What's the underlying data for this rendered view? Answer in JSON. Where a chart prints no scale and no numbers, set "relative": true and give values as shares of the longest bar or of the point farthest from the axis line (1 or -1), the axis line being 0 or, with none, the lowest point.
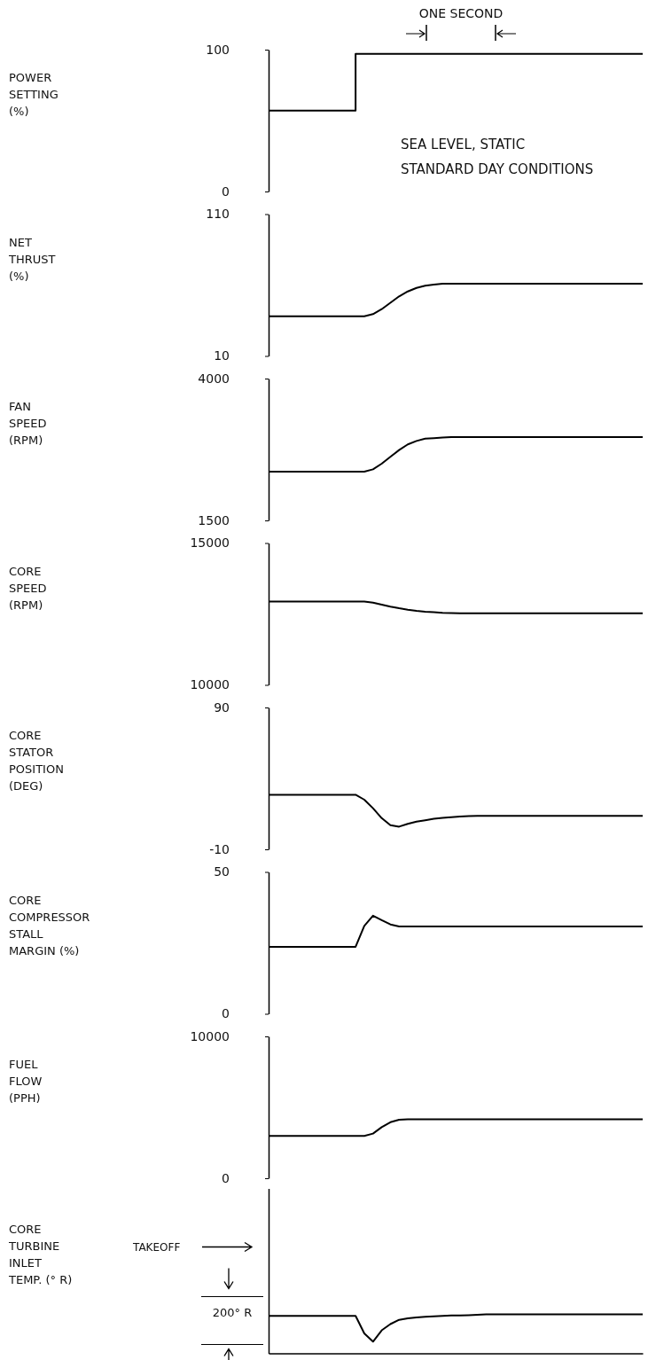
{
  "chart_data": [
    {
      "type": "step",
      "ylabel": "POWER\nSETTING\n(%)",
      "categories": [
        null,
        null,
        null,
        null,
        null,
        null,
        null,
        null,
        null,
        null,
        null,
        null,
        null,
        null,
        null,
        null,
        null,
        null,
        null,
        null,
        null,
        null,
        null,
        null,
        null,
        null,
        null,
        null,
        null,
        null,
        null,
        null,
        null,
        null,
        null,
        null,
        null,
        null,
        null,
        null,
        null,
        null,
        null,
        null
      ],
      "color": "#000000",
      "values": [
        57,
        57,
        57,
        57,
        57,
        57,
        57,
        57,
        57,
        57,
        97,
        97,
        97,
        97,
        97,
        97,
        97,
        97,
        97,
        97,
        97,
        97,
        97,
        97,
        97,
        97,
        97,
        97,
        97,
        97,
        97,
        97,
        97,
        97,
        97,
        97,
        97,
        97,
        97,
        97,
        97,
        97,
        97,
        97
      ],
      "ylim": [
        0,
        100
      ],
      "yticks": [
        0,
        100
      ],
      "tick_labels": "y",
      "annotations": [
        "ONE SECOND",
        "SEA LEVEL, STATIC",
        "STANDARD DAY CONDITIONS"
      ]
    },
    {
      "type": "line",
      "ylabel": "NET\nTHRUST\n(%)",
      "categories": [
        null,
        null,
        null,
        null,
        null,
        null,
        null,
        null,
        null,
        null,
        null,
        null,
        null,
        null,
        null,
        null,
        null,
        null,
        null,
        null,
        null,
        null,
        null,
        null,
        null,
        null,
        null,
        null,
        null,
        null,
        null,
        null,
        null,
        null,
        null,
        null,
        null,
        null,
        null,
        null,
        null,
        null,
        null,
        null
      ],
      "color": "#000000",
      "values": [
        38,
        38,
        38,
        38,
        38,
        38,
        38,
        38,
        38,
        38,
        38,
        38,
        39.5,
        43,
        47.5,
        52,
        55.5,
        58,
        59.5,
        60.3,
        61,
        61,
        61,
        61,
        61,
        61,
        61,
        61,
        61,
        61,
        61,
        61,
        61,
        61,
        61,
        61,
        61,
        61,
        61,
        61,
        61,
        61,
        61,
        61
      ],
      "ylim": [
        10,
        110
      ],
      "yticks": [
        10,
        110
      ],
      "tick_labels": "y"
    },
    {
      "type": "line",
      "ylabel": "FAN\nSPEED\n(RPM)",
      "categories": [
        null,
        null,
        null,
        null,
        null,
        null,
        null,
        null,
        null,
        null,
        null,
        null,
        null,
        null,
        null,
        null,
        null,
        null,
        null,
        null,
        null,
        null,
        null,
        null,
        null,
        null,
        null,
        null,
        null,
        null,
        null,
        null,
        null,
        null,
        null,
        null,
        null,
        null,
        null,
        null,
        null,
        null,
        null,
        null
      ],
      "color": "#000000",
      "values": [
        2360,
        2360,
        2360,
        2360,
        2360,
        2360,
        2360,
        2360,
        2360,
        2360,
        2360,
        2360,
        2400,
        2500,
        2620,
        2740,
        2840,
        2900,
        2940,
        2950,
        2960,
        2970,
        2970,
        2970,
        2970,
        2970,
        2970,
        2970,
        2970,
        2970,
        2970,
        2970,
        2970,
        2970,
        2970,
        2970,
        2970,
        2970,
        2970,
        2970,
        2970,
        2970,
        2970,
        2970
      ],
      "ylim": [
        1500,
        4000
      ],
      "yticks": [
        1500,
        4000
      ],
      "tick_labels": "y"
    },
    {
      "type": "line",
      "ylabel": "CORE\nSPEED\n(RPM)",
      "categories": [
        null,
        null,
        null,
        null,
        null,
        null,
        null,
        null,
        null,
        null,
        null,
        null,
        null,
        null,
        null,
        null,
        null,
        null,
        null,
        null,
        null,
        null,
        null,
        null,
        null,
        null,
        null,
        null,
        null,
        null,
        null,
        null,
        null,
        null,
        null,
        null,
        null,
        null,
        null,
        null,
        null,
        null,
        null,
        null
      ],
      "color": "#000000",
      "values": [
        12940,
        12940,
        12940,
        12940,
        12940,
        12940,
        12940,
        12940,
        12940,
        12940,
        12940,
        12940,
        12900,
        12830,
        12760,
        12700,
        12650,
        12610,
        12580,
        12560,
        12540,
        12530,
        12520,
        12520,
        12520,
        12520,
        12520,
        12520,
        12520,
        12520,
        12520,
        12520,
        12520,
        12520,
        12520,
        12520,
        12520,
        12520,
        12520,
        12520,
        12520,
        12520,
        12520,
        12520
      ],
      "ylim": [
        10000,
        15000
      ],
      "yticks": [
        10000,
        15000
      ],
      "tick_labels": "y"
    },
    {
      "type": "line",
      "ylabel": "CORE\nSTATOR\nPOSITION\n(DEG)",
      "categories": [
        null,
        null,
        null,
        null,
        null,
        null,
        null,
        null,
        null,
        null,
        null,
        null,
        null,
        null,
        null,
        null,
        null,
        null,
        null,
        null,
        null,
        null,
        null,
        null,
        null,
        null,
        null,
        null,
        null,
        null,
        null,
        null,
        null,
        null,
        null,
        null,
        null,
        null,
        null,
        null,
        null,
        null,
        null,
        null
      ],
      "color": "#000000",
      "values": [
        28.5,
        28.5,
        28.5,
        28.5,
        28.5,
        28.5,
        28.5,
        28.5,
        28.5,
        28.5,
        28.5,
        25,
        19,
        12,
        7,
        6,
        8,
        9.5,
        10.5,
        11.5,
        12.2,
        12.7,
        13.1,
        13.4,
        13.6,
        13.6,
        13.6,
        13.6,
        13.6,
        13.6,
        13.6,
        13.6,
        13.6,
        13.6,
        13.6,
        13.6,
        13.6,
        13.6,
        13.6,
        13.6,
        13.6,
        13.6,
        13.6,
        13.6
      ],
      "ylim": [
        -10,
        90
      ],
      "yticks": [
        -10,
        90
      ],
      "tick_labels": "y"
    },
    {
      "type": "line",
      "ylabel": "CORE\nCOMPRESSOR\nSTALL\nMARGIN  (%)",
      "categories": [
        null,
        null,
        null,
        null,
        null,
        null,
        null,
        null,
        null,
        null,
        null,
        null,
        null,
        null,
        null,
        null,
        null,
        null,
        null,
        null,
        null,
        null,
        null,
        null,
        null,
        null,
        null,
        null,
        null,
        null,
        null,
        null,
        null,
        null,
        null,
        null,
        null,
        null,
        null,
        null,
        null,
        null,
        null,
        null
      ],
      "color": "#000000",
      "values": [
        23.6,
        23.6,
        23.6,
        23.6,
        23.6,
        23.6,
        23.6,
        23.6,
        23.6,
        23.6,
        23.6,
        31,
        34.6,
        33,
        31.5,
        30.8,
        30.8,
        30.8,
        30.8,
        30.8,
        30.8,
        30.8,
        30.8,
        30.8,
        30.8,
        30.8,
        30.8,
        30.8,
        30.8,
        30.8,
        30.8,
        30.8,
        30.8,
        30.8,
        30.8,
        30.8,
        30.8,
        30.8,
        30.8,
        30.8,
        30.8,
        30.8,
        30.8,
        30.8
      ],
      "ylim": [
        0,
        50
      ],
      "yticks": [
        0,
        50
      ],
      "tick_labels": "y"
    },
    {
      "type": "line",
      "ylabel": "FUEL\nFLOW\n(PPH)",
      "categories": [
        null,
        null,
        null,
        null,
        null,
        null,
        null,
        null,
        null,
        null,
        null,
        null,
        null,
        null,
        null,
        null,
        null,
        null,
        null,
        null,
        null,
        null,
        null,
        null,
        null,
        null,
        null,
        null,
        null,
        null,
        null,
        null,
        null,
        null,
        null,
        null,
        null,
        null,
        null,
        null,
        null,
        null,
        null,
        null
      ],
      "color": "#000000",
      "values": [
        2980,
        2980,
        2980,
        2980,
        2980,
        2980,
        2980,
        2980,
        2980,
        2980,
        2980,
        2980,
        3150,
        3600,
        3950,
        4120,
        4160,
        4160,
        4160,
        4160,
        4160,
        4160,
        4160,
        4160,
        4160,
        4160,
        4160,
        4160,
        4160,
        4160,
        4160,
        4160,
        4160,
        4160,
        4160,
        4160,
        4160,
        4160,
        4160,
        4160,
        4160,
        4160,
        4160,
        4160
      ],
      "ylim": [
        0,
        10000
      ],
      "yticks": [
        0,
        10000
      ],
      "tick_labels": "y"
    },
    {
      "type": "line",
      "relative": true,
      "ylabel": "CORE\nTURBINE\nINLET\nTEMP. (° R)",
      "categories": [
        null,
        null,
        null,
        null,
        null,
        null,
        null,
        null,
        null,
        null,
        null,
        null,
        null,
        null,
        null,
        null,
        null,
        null,
        null,
        null,
        null,
        null,
        null,
        null,
        null,
        null,
        null,
        null,
        null,
        null,
        null,
        null,
        null,
        null,
        null,
        null,
        null,
        null,
        null,
        null,
        null,
        null,
        null,
        null
      ],
      "color": "#000000",
      "values": [
        0.96,
        0.96,
        0.96,
        0.96,
        0.96,
        0.96,
        0.96,
        0.96,
        0.96,
        0.96,
        0.96,
        0.51,
        0.3,
        0.59,
        0.75,
        0.86,
        0.9,
        0.92,
        0.94,
        0.95,
        0.96,
        0.97,
        0.97,
        0.98,
        0.99,
        1,
        1,
        1,
        1,
        1,
        1,
        1,
        1,
        1,
        1,
        1,
        1,
        1,
        1,
        1,
        1,
        1,
        1,
        1
      ],
      "tick_labels": false,
      "annotations": [
        "TAKEOFF",
        "200° R"
      ]
    }
  ]
}
